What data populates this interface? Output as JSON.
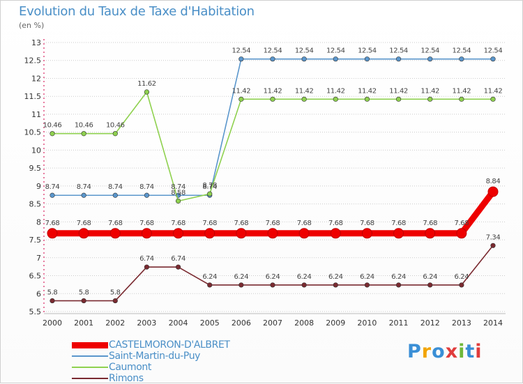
{
  "header": {
    "title": "Evolution du Taux de Taxe d'Habitation",
    "subtitle": "(en %)"
  },
  "logo_text": "Proxiti",
  "colors": {
    "title": "#4a8fc7",
    "grid": "#cccccc",
    "axis": "#e05080"
  },
  "chart_data": {
    "type": "line",
    "title": "Evolution du Taux de Taxe d'Habitation",
    "subtitle": "(en %)",
    "xlabel": "",
    "ylabel": "",
    "x": [
      "2000",
      "2001",
      "2002",
      "2003",
      "2004",
      "2005",
      "2006",
      "2007",
      "2008",
      "2009",
      "2010",
      "2011",
      "2012",
      "2013",
      "2014"
    ],
    "ylim": [
      5.5,
      13
    ],
    "yticks": [
      "5.5",
      "6",
      "6.5",
      "7",
      "7.5",
      "8",
      "8.5",
      "9",
      "9.5",
      "10",
      "10.5",
      "11",
      "11.5",
      "12",
      "12.5",
      "13"
    ],
    "grid": "horizontal",
    "legend_position": "bottom-left",
    "series": [
      {
        "name": "CASTELMORON-D'ALBRET",
        "color": "#ee0000",
        "emphasis": true,
        "values": [
          7.68,
          7.68,
          7.68,
          7.68,
          7.68,
          7.68,
          7.68,
          7.68,
          7.68,
          7.68,
          7.68,
          7.68,
          7.68,
          7.68,
          8.84
        ],
        "labels": [
          "7.68",
          "7.68",
          "7.68",
          "7.68",
          "7.68",
          "7.68",
          "7.68",
          "7.68",
          "7.68",
          "7.68",
          "7.68",
          "7.68",
          "7.68",
          "7.68",
          "8.84"
        ]
      },
      {
        "name": "Saint-Martin-du-Puy",
        "color": "#5a96cc",
        "emphasis": false,
        "values": [
          8.74,
          8.74,
          8.74,
          8.74,
          8.74,
          8.74,
          12.54,
          12.54,
          12.54,
          12.54,
          12.54,
          12.54,
          12.54,
          12.54,
          12.54
        ],
        "labels": [
          "8.74",
          "8.74",
          "8.74",
          "8.74",
          "8.74",
          "8.74",
          "12.54",
          "12.54",
          "12.54",
          "12.54",
          "12.54",
          "12.54",
          "12.54",
          "12.54",
          "12.54"
        ]
      },
      {
        "name": "Caumont",
        "color": "#8fd14f",
        "emphasis": false,
        "values": [
          10.46,
          10.46,
          10.46,
          11.62,
          8.58,
          8.78,
          11.42,
          11.42,
          11.42,
          11.42,
          11.42,
          11.42,
          11.42,
          11.42,
          11.42
        ],
        "labels": [
          "10.46",
          "10.46",
          "10.46",
          "11.62",
          "8.58",
          "8.78",
          "11.42",
          "11.42",
          "11.42",
          "11.42",
          "11.42",
          "11.42",
          "11.42",
          "11.42",
          "11.42"
        ]
      },
      {
        "name": "Rimons",
        "color": "#7a2a30",
        "emphasis": false,
        "values": [
          5.8,
          5.8,
          5.8,
          6.74,
          6.74,
          6.24,
          6.24,
          6.24,
          6.24,
          6.24,
          6.24,
          6.24,
          6.24,
          6.24,
          7.34
        ],
        "labels": [
          "5.8",
          "5.8",
          "5.8",
          "6.74",
          "6.74",
          "6.24",
          "6.24",
          "6.24",
          "6.24",
          "6.24",
          "6.24",
          "6.24",
          "6.24",
          "6.24",
          "7.34"
        ]
      }
    ]
  }
}
